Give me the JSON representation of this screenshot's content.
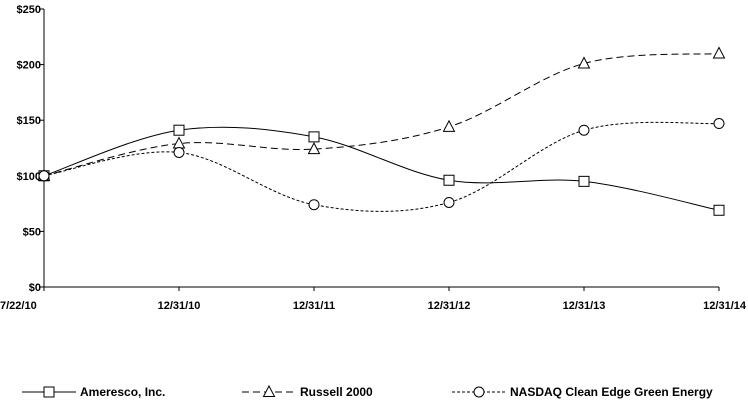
{
  "chart_data": {
    "type": "line",
    "x": [
      "7/22/10",
      "12/31/10",
      "12/31/11",
      "12/31/12",
      "12/31/13",
      "12/31/14"
    ],
    "ylim": [
      0,
      250
    ],
    "yticks": [
      0,
      50,
      100,
      150,
      200,
      250
    ],
    "ytick_labels": [
      "$0",
      "$50",
      "$100",
      "$150",
      "$200",
      "$250"
    ],
    "grid": false,
    "legend_position": "bottom",
    "series": [
      {
        "name": "Ameresco, Inc.",
        "values": [
          100,
          141,
          135,
          96,
          95,
          69
        ],
        "marker": "square",
        "dash": "solid",
        "color": "#000000"
      },
      {
        "name": "Russell 2000",
        "values": [
          100,
          129,
          124,
          144,
          201,
          210
        ],
        "marker": "triangle",
        "dash": "dashed",
        "color": "#000000"
      },
      {
        "name": "NASDAQ Clean Edge Green Energy",
        "values": [
          100,
          121,
          74,
          76,
          141,
          147
        ],
        "marker": "circle",
        "dash": "dotted",
        "color": "#000000"
      }
    ]
  }
}
